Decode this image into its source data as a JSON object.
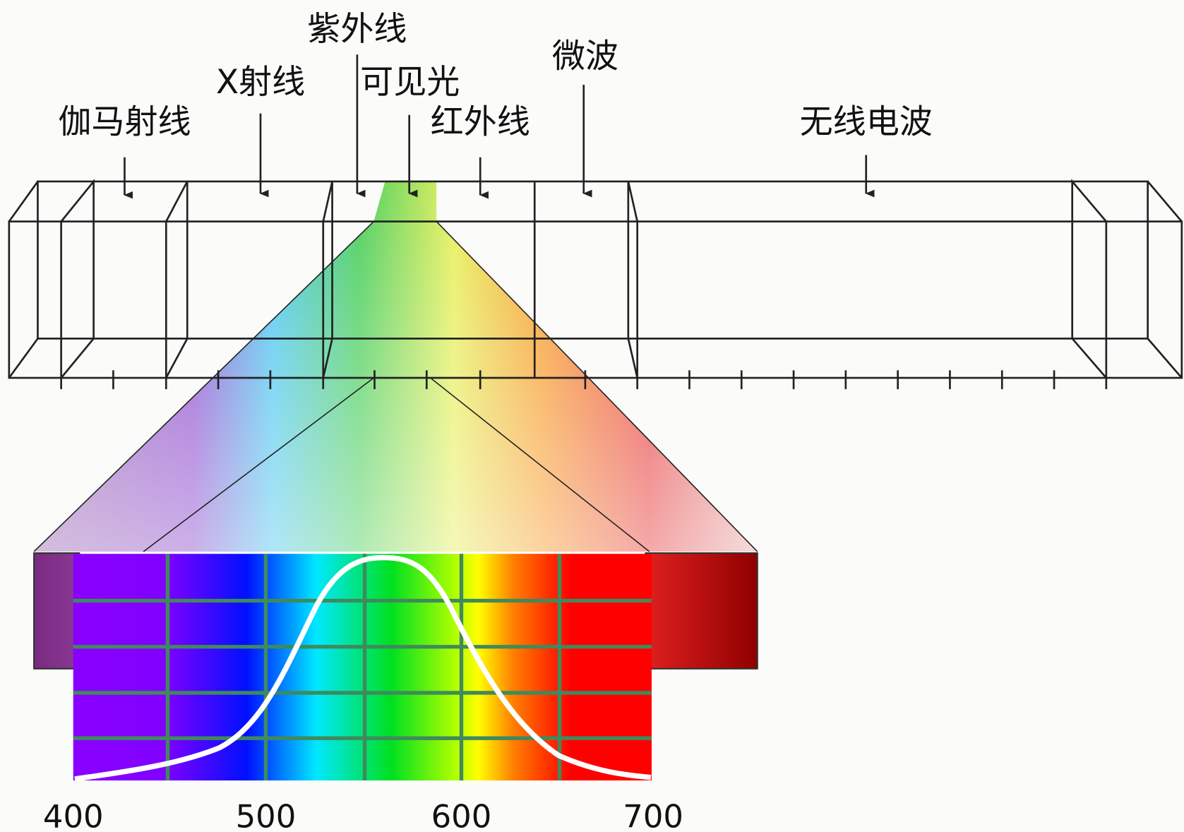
{
  "bands": [
    {
      "label": "伽马射线"
    },
    {
      "label": "X射线"
    },
    {
      "label": "紫外线"
    },
    {
      "label": "可见光"
    },
    {
      "label": "红外线"
    },
    {
      "label": "微波"
    },
    {
      "label": "无线电波"
    }
  ],
  "spectrum": {
    "xticks": [
      400,
      500,
      600,
      700
    ]
  }
}
